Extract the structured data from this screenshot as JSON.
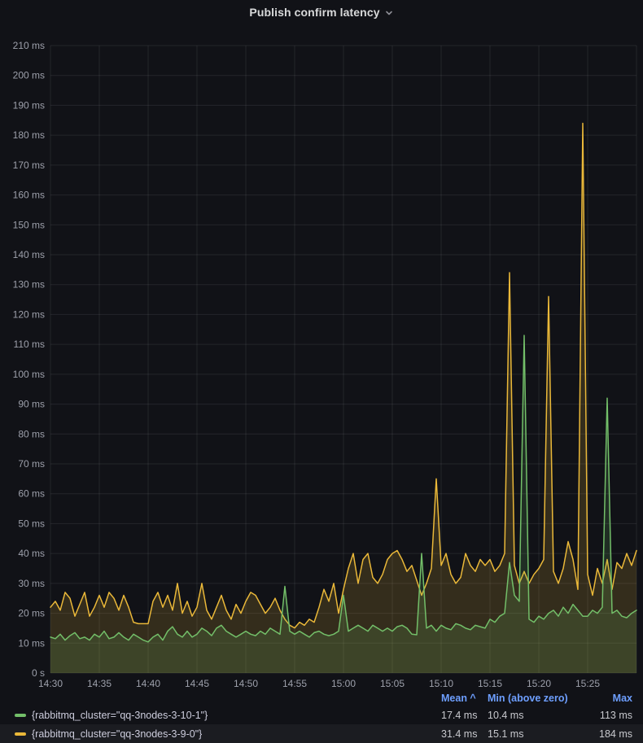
{
  "panel": {
    "title": "Publish confirm latency"
  },
  "colors": {
    "background": "#111217",
    "grid": "rgba(204,204,220,0.10)",
    "axis_text": "#9DA0AB",
    "title_text": "#D8D9DA",
    "legend_header": "#6E9FFF",
    "green": "#73BF69",
    "yellow": "#EAB839"
  },
  "chart_data": {
    "type": "line",
    "title": "Publish confirm latency",
    "xlabel": "",
    "ylabel": "",
    "ylim": [
      0,
      210
    ],
    "total_minutes": 60,
    "step_seconds": 30,
    "x_start": "14:30",
    "x_end": "15:30",
    "x_tick_interval_min": 5,
    "x_ticks": [
      "14:30",
      "14:35",
      "14:40",
      "14:45",
      "14:50",
      "14:55",
      "15:00",
      "15:05",
      "15:10",
      "15:15",
      "15:20",
      "15:25"
    ],
    "y_ticks": [
      "0 s",
      "10 ms",
      "20 ms",
      "30 ms",
      "40 ms",
      "50 ms",
      "60 ms",
      "70 ms",
      "80 ms",
      "90 ms",
      "100 ms",
      "110 ms",
      "120 ms",
      "130 ms",
      "140 ms",
      "150 ms",
      "160 ms",
      "170 ms",
      "180 ms",
      "190 ms",
      "200 ms",
      "210 ms"
    ],
    "grid": true,
    "legend_position": "bottom-table",
    "fill_opacity": 0.16,
    "series": [
      {
        "name": "{rabbitmq_cluster=\"qq-3nodes-3-10-1\"}",
        "color": "#73BF69",
        "unit": "ms",
        "values": [
          12,
          11.5,
          13,
          11,
          12.5,
          13.5,
          11.5,
          12,
          11,
          13,
          12,
          14,
          11.5,
          12,
          13.5,
          12,
          11,
          13,
          12,
          11,
          10.4,
          12,
          13,
          11,
          14,
          15.5,
          13,
          12,
          14,
          12,
          13,
          15,
          14,
          12.5,
          15,
          16,
          14,
          13,
          12,
          13,
          14,
          13,
          12.5,
          14,
          13,
          15,
          14,
          13,
          29,
          14,
          13,
          14,
          13,
          12,
          13.5,
          14,
          13,
          12.5,
          13,
          14,
          26,
          14,
          15,
          16,
          15,
          14,
          16,
          15,
          14,
          15,
          14,
          15.5,
          16,
          15,
          13,
          12.8,
          40,
          15,
          16,
          14,
          16,
          15,
          14.5,
          16.5,
          16,
          15,
          14.5,
          16,
          15.5,
          15,
          18,
          17,
          19,
          20,
          37,
          26,
          24,
          113,
          18,
          17,
          19,
          18,
          20,
          21,
          19,
          22,
          20,
          23,
          21,
          19,
          19,
          21,
          20,
          22,
          92,
          20,
          21,
          19,
          18.5,
          20,
          21
        ]
      },
      {
        "name": "{rabbitmq_cluster=\"qq-3nodes-3-9-0\"}",
        "color": "#EAB839",
        "unit": "ms",
        "values": [
          22,
          24,
          21,
          27,
          25,
          19,
          23,
          27,
          19,
          22,
          26,
          22,
          27,
          25,
          21,
          26,
          22,
          17,
          16.5,
          16.5,
          16.5,
          24,
          27,
          22,
          26,
          21,
          30,
          20,
          24,
          19,
          22,
          30,
          21,
          18,
          22,
          26,
          21,
          18,
          23,
          20,
          24,
          27,
          26,
          23,
          20,
          22,
          25,
          21,
          18,
          16,
          15.1,
          17,
          16,
          18,
          17,
          22,
          28,
          24,
          30,
          20,
          28,
          35,
          40,
          30,
          38,
          40,
          32,
          30,
          33,
          38,
          40,
          41,
          38,
          34,
          36,
          31,
          26,
          30,
          35,
          65,
          36,
          40,
          33,
          30,
          32,
          40,
          36,
          34,
          38,
          36,
          38,
          34,
          36,
          40,
          134,
          36,
          30,
          34,
          30,
          33,
          35,
          38,
          126,
          34,
          30,
          35,
          44,
          38,
          28,
          184,
          33,
          26,
          35,
          30,
          38,
          28,
          37,
          35,
          40,
          36,
          41
        ]
      }
    ]
  },
  "legend": {
    "columns": [
      "Mean ^",
      "Min (above zero)",
      "Max"
    ],
    "rows": [
      {
        "label": "{rabbitmq_cluster=\"qq-3nodes-3-10-1\"}",
        "color": "#73BF69",
        "mean": "17.4 ms",
        "min": "10.4 ms",
        "max": "113 ms"
      },
      {
        "label": "{rabbitmq_cluster=\"qq-3nodes-3-9-0\"}",
        "color": "#EAB839",
        "mean": "31.4 ms",
        "min": "15.1 ms",
        "max": "184 ms"
      }
    ]
  }
}
